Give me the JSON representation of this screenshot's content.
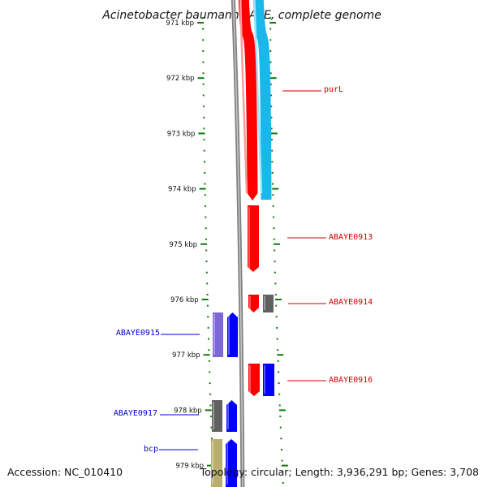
{
  "title": "Acinetobacter baumannii AYE, complete genome",
  "footer": {
    "accession": "Accession: NC_010410",
    "topology": "Topology: circular; Length: 3,936,291 bp; Genes: 3,708"
  },
  "colors": {
    "tick": "#0a7d0a",
    "forward_label": "#cc0000",
    "reverse_label": "#0000cc",
    "backbone": "#808080",
    "red_gene": "#ff0000",
    "cyan_gene": "#19b8ea",
    "blue_gene": "#0000ff",
    "purple_gene": "#7b68d6",
    "gray_gene": "#606060",
    "khaki_gene": "#b8ae6e"
  },
  "ruler": {
    "unit": "kbp",
    "labels": [
      "971 kbp",
      "972 kbp",
      "973 kbp",
      "974 kbp",
      "975 kbp",
      "976 kbp",
      "977 kbp",
      "978 kbp",
      "979 kbp"
    ]
  },
  "genes": [
    {
      "name": "purL",
      "strand": "forward"
    },
    {
      "name": "ABAYE0913",
      "strand": "forward"
    },
    {
      "name": "ABAYE0914",
      "strand": "forward"
    },
    {
      "name": "ABAYE0915",
      "strand": "reverse"
    },
    {
      "name": "ABAYE0916",
      "strand": "forward"
    },
    {
      "name": "ABAYE0917",
      "strand": "reverse"
    },
    {
      "name": "bcp",
      "strand": "reverse"
    }
  ]
}
